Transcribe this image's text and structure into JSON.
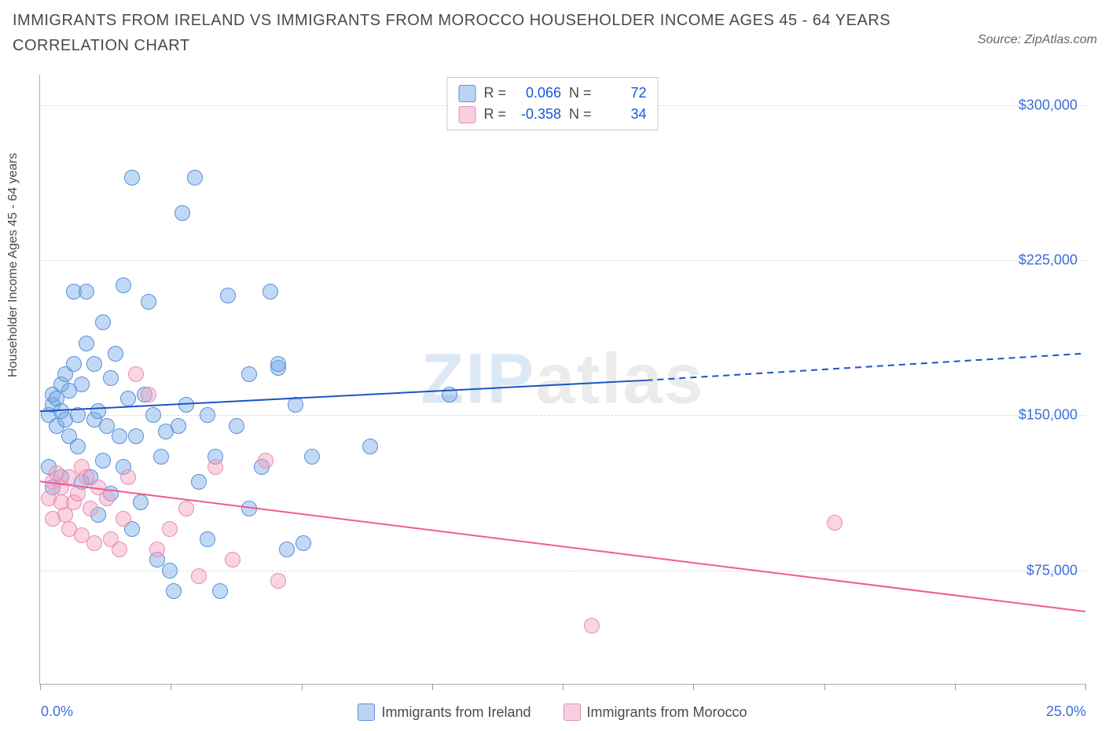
{
  "title": "IMMIGRANTS FROM IRELAND VS IMMIGRANTS FROM MOROCCO HOUSEHOLDER INCOME AGES 45 - 64 YEARS CORRELATION CHART",
  "source": "Source: ZipAtlas.com",
  "watermark_a": "ZIP",
  "watermark_b": "atlas",
  "chart": {
    "type": "scatter",
    "y_axis_title": "Householder Income Ages 45 - 64 years",
    "xlim": [
      0.0,
      25.0
    ],
    "ylim": [
      20000,
      315000
    ],
    "xtick_positions_pct": [
      0,
      12.5,
      25,
      37.5,
      50,
      62.5,
      75,
      87.5,
      100
    ],
    "xlim_labels": {
      "min": "0.0%",
      "max": "25.0%"
    },
    "y_gridlines": [
      {
        "value": 75000,
        "label": "$75,000"
      },
      {
        "value": 150000,
        "label": "$150,000"
      },
      {
        "value": 225000,
        "label": "$225,000"
      },
      {
        "value": 300000,
        "label": "$300,000"
      }
    ],
    "point_radius": 9,
    "point_opacity": 0.55,
    "background_color": "#ffffff",
    "grid_color": "#dcdcdc",
    "series": [
      {
        "key": "ireland",
        "label": "Immigrants from Ireland",
        "R": "0.066",
        "N": "72",
        "color_fill": "rgba(120,170,235,0.45)",
        "color_stroke": "#5b8fd6",
        "swatch_fill": "#bcd4f2",
        "swatch_border": "#5b8fd6",
        "trend": {
          "color": "#1a55c4",
          "width": 2,
          "solid_to_x": 14.5,
          "y_start": 152000,
          "y_solid_end": 167000,
          "y_dash_end": 180000
        },
        "points": [
          [
            0.2,
            150000
          ],
          [
            0.3,
            155000
          ],
          [
            0.3,
            160000
          ],
          [
            0.4,
            145000
          ],
          [
            0.4,
            158000
          ],
          [
            0.5,
            152000
          ],
          [
            0.5,
            165000
          ],
          [
            0.5,
            120000
          ],
          [
            0.6,
            148000
          ],
          [
            0.6,
            170000
          ],
          [
            0.7,
            140000
          ],
          [
            0.7,
            162000
          ],
          [
            0.8,
            175000
          ],
          [
            0.8,
            210000
          ],
          [
            0.9,
            135000
          ],
          [
            0.9,
            150000
          ],
          [
            1.0,
            165000
          ],
          [
            1.0,
            118000
          ],
          [
            1.1,
            185000
          ],
          [
            1.1,
            210000
          ],
          [
            1.2,
            120000
          ],
          [
            1.3,
            148000
          ],
          [
            1.3,
            175000
          ],
          [
            1.4,
            102000
          ],
          [
            1.4,
            152000
          ],
          [
            1.5,
            195000
          ],
          [
            1.5,
            128000
          ],
          [
            1.6,
            145000
          ],
          [
            1.7,
            168000
          ],
          [
            1.7,
            112000
          ],
          [
            1.8,
            180000
          ],
          [
            1.9,
            140000
          ],
          [
            2.0,
            213000
          ],
          [
            2.0,
            125000
          ],
          [
            2.1,
            158000
          ],
          [
            2.2,
            265000
          ],
          [
            2.2,
            95000
          ],
          [
            2.3,
            140000
          ],
          [
            2.4,
            108000
          ],
          [
            2.5,
            160000
          ],
          [
            2.6,
            205000
          ],
          [
            2.7,
            150000
          ],
          [
            2.8,
            80000
          ],
          [
            2.9,
            130000
          ],
          [
            3.0,
            142000
          ],
          [
            3.1,
            75000
          ],
          [
            3.2,
            65000
          ],
          [
            3.3,
            145000
          ],
          [
            3.4,
            248000
          ],
          [
            3.5,
            155000
          ],
          [
            3.7,
            265000
          ],
          [
            3.8,
            118000
          ],
          [
            4.0,
            150000
          ],
          [
            4.0,
            90000
          ],
          [
            4.2,
            130000
          ],
          [
            4.3,
            65000
          ],
          [
            4.5,
            208000
          ],
          [
            4.7,
            145000
          ],
          [
            5.0,
            170000
          ],
          [
            5.0,
            105000
          ],
          [
            5.3,
            125000
          ],
          [
            5.5,
            210000
          ],
          [
            5.7,
            173000
          ],
          [
            5.7,
            175000
          ],
          [
            5.9,
            85000
          ],
          [
            6.1,
            155000
          ],
          [
            6.3,
            88000
          ],
          [
            6.5,
            130000
          ],
          [
            7.9,
            135000
          ],
          [
            9.8,
            160000
          ],
          [
            0.3,
            115000
          ],
          [
            0.2,
            125000
          ]
        ]
      },
      {
        "key": "morocco",
        "label": "Immigrants from Morocco",
        "R": "-0.358",
        "N": "34",
        "color_fill": "rgba(245,160,190,0.45)",
        "color_stroke": "#e58faf",
        "swatch_fill": "#f7cfe0",
        "swatch_border": "#e58faf",
        "trend": {
          "color": "#ef5b8e",
          "width": 2,
          "solid_to_x": 25.0,
          "y_start": 118000,
          "y_solid_end": 55000,
          "y_dash_end": 55000
        },
        "points": [
          [
            0.2,
            110000
          ],
          [
            0.3,
            118000
          ],
          [
            0.3,
            100000
          ],
          [
            0.4,
            122000
          ],
          [
            0.5,
            108000
          ],
          [
            0.5,
            115000
          ],
          [
            0.6,
            102000
          ],
          [
            0.7,
            120000
          ],
          [
            0.7,
            95000
          ],
          [
            0.8,
            108000
          ],
          [
            0.9,
            112000
          ],
          [
            1.0,
            125000
          ],
          [
            1.0,
            92000
          ],
          [
            1.1,
            120000
          ],
          [
            1.2,
            105000
          ],
          [
            1.3,
            88000
          ],
          [
            1.4,
            115000
          ],
          [
            1.6,
            110000
          ],
          [
            1.7,
            90000
          ],
          [
            1.9,
            85000
          ],
          [
            2.0,
            100000
          ],
          [
            2.1,
            120000
          ],
          [
            2.3,
            170000
          ],
          [
            2.6,
            160000
          ],
          [
            2.8,
            85000
          ],
          [
            3.1,
            95000
          ],
          [
            3.5,
            105000
          ],
          [
            3.8,
            72000
          ],
          [
            4.2,
            125000
          ],
          [
            4.6,
            80000
          ],
          [
            5.4,
            128000
          ],
          [
            5.7,
            70000
          ],
          [
            13.2,
            48000
          ],
          [
            19.0,
            98000
          ]
        ]
      }
    ]
  },
  "legend_stats": {
    "r_label": "R =",
    "n_label": "N ="
  }
}
